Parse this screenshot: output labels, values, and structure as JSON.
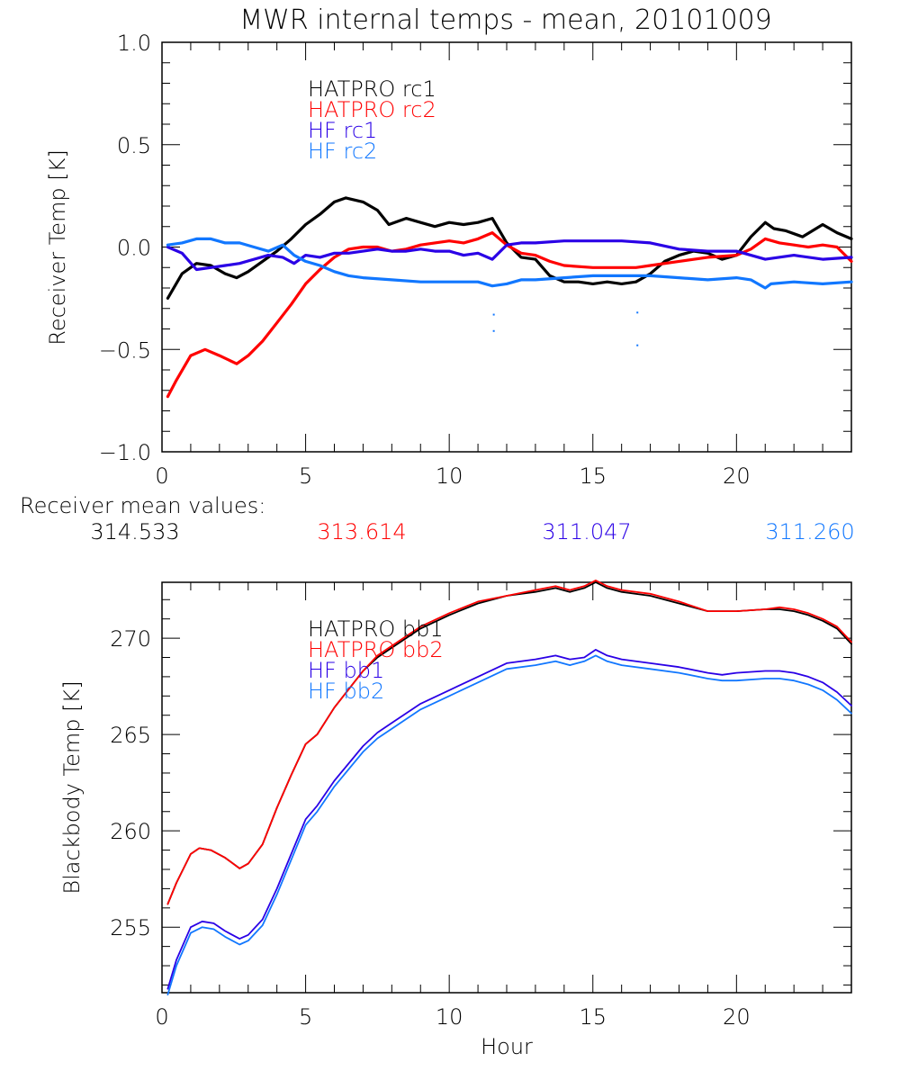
{
  "chart_data": [
    {
      "type": "line",
      "title": "MWR internal temps - mean, 20101009",
      "xlabel": "",
      "ylabel": "Receiver Temp [K]",
      "xlim": [
        0,
        24
      ],
      "ylim": [
        -1.0,
        1.0
      ],
      "xticks": [
        "0",
        "5",
        "10",
        "15",
        "20"
      ],
      "xtick_values": [
        0,
        5,
        10,
        15,
        20
      ],
      "yticks": [
        "-1.0",
        "-0.5",
        "0.0",
        "0.5",
        "1.0"
      ],
      "ytick_values": [
        -1.0,
        -0.5,
        0.0,
        0.5,
        1.0
      ],
      "x_minor_step": 1,
      "y_minor_step": 0.1,
      "grid": false,
      "legend_position": "top-left",
      "series": [
        {
          "name": "HATPRO rc1",
          "color": "#000000",
          "x": [
            0.2,
            0.7,
            1.2,
            1.7,
            2.2,
            2.6,
            3.0,
            3.5,
            4.0,
            4.5,
            5.0,
            5.5,
            6.0,
            6.4,
            7.0,
            7.5,
            7.9,
            8.5,
            9.0,
            9.5,
            10.0,
            10.5,
            11.0,
            11.5,
            12.0,
            12.5,
            13.0,
            13.5,
            14.0,
            14.5,
            15.0,
            15.5,
            16.0,
            16.5,
            17.0,
            17.5,
            18.0,
            18.5,
            19.0,
            19.5,
            20.0,
            20.5,
            21.0,
            21.3,
            21.7,
            22.3,
            23.0,
            23.5,
            24.0
          ],
          "y": [
            -0.25,
            -0.13,
            -0.08,
            -0.09,
            -0.13,
            -0.15,
            -0.12,
            -0.07,
            -0.02,
            0.04,
            0.11,
            0.16,
            0.22,
            0.24,
            0.22,
            0.18,
            0.11,
            0.14,
            0.12,
            0.1,
            0.12,
            0.11,
            0.12,
            0.14,
            0.02,
            -0.05,
            -0.06,
            -0.14,
            -0.17,
            -0.17,
            -0.18,
            -0.17,
            -0.18,
            -0.17,
            -0.13,
            -0.07,
            -0.04,
            -0.02,
            -0.03,
            -0.06,
            -0.04,
            0.05,
            0.12,
            0.09,
            0.08,
            0.05,
            0.11,
            0.07,
            0.04
          ]
        },
        {
          "name": "HATPRO rc2",
          "color": "#ff0000",
          "x": [
            0.2,
            0.5,
            1.0,
            1.5,
            2.0,
            2.6,
            3.0,
            3.5,
            4.0,
            4.5,
            5.0,
            5.5,
            6.0,
            6.5,
            7.0,
            7.5,
            8.0,
            8.5,
            9.0,
            9.5,
            10.0,
            10.5,
            11.0,
            11.5,
            12.0,
            12.5,
            13.0,
            13.5,
            14.0,
            15.0,
            16.0,
            16.5,
            17.0,
            18.0,
            19.0,
            20.0,
            20.5,
            21.0,
            21.5,
            22.0,
            22.5,
            23.0,
            23.5,
            24.0
          ],
          "y": [
            -0.73,
            -0.65,
            -0.53,
            -0.5,
            -0.53,
            -0.57,
            -0.53,
            -0.46,
            -0.37,
            -0.28,
            -0.18,
            -0.11,
            -0.05,
            -0.01,
            0.0,
            0.0,
            -0.02,
            -0.01,
            0.01,
            0.02,
            0.03,
            0.02,
            0.04,
            0.07,
            0.01,
            -0.03,
            -0.04,
            -0.07,
            -0.09,
            -0.1,
            -0.1,
            -0.1,
            -0.09,
            -0.07,
            -0.05,
            -0.04,
            -0.01,
            0.04,
            0.02,
            0.01,
            0.0,
            0.01,
            0.0,
            -0.07
          ]
        },
        {
          "name": "HF rc1",
          "color": "#2a00e6",
          "x": [
            0.2,
            0.7,
            1.2,
            1.7,
            2.2,
            2.7,
            3.2,
            3.7,
            4.2,
            4.6,
            5.0,
            5.5,
            6.0,
            6.5,
            7.0,
            7.5,
            8.0,
            8.5,
            9.0,
            9.5,
            10.0,
            10.5,
            11.0,
            11.5,
            12.0,
            12.5,
            13.0,
            14.0,
            15.0,
            16.0,
            17.0,
            18.0,
            19.0,
            20.0,
            21.0,
            22.0,
            23.0,
            24.0
          ],
          "y": [
            0.0,
            -0.03,
            -0.11,
            -0.1,
            -0.09,
            -0.08,
            -0.06,
            -0.04,
            -0.05,
            -0.08,
            -0.04,
            -0.05,
            -0.03,
            -0.03,
            -0.02,
            -0.01,
            -0.02,
            -0.02,
            -0.01,
            -0.02,
            -0.02,
            -0.04,
            -0.03,
            -0.06,
            0.01,
            0.02,
            0.02,
            0.03,
            0.03,
            0.03,
            0.02,
            -0.01,
            -0.02,
            -0.02,
            -0.06,
            -0.04,
            -0.06,
            -0.05
          ]
        },
        {
          "name": "HF rc2",
          "color": "#1177ff",
          "x": [
            0.2,
            0.7,
            1.2,
            1.7,
            2.2,
            2.7,
            3.2,
            3.7,
            4.2,
            4.6,
            5.0,
            5.5,
            6.0,
            6.5,
            7.0,
            8.0,
            9.0,
            10.0,
            11.0,
            11.5,
            12.0,
            12.5,
            13.0,
            14.0,
            15.0,
            16.0,
            17.0,
            18.0,
            19.0,
            20.0,
            20.5,
            21.0,
            21.2,
            22.0,
            23.0,
            24.0
          ],
          "y": [
            0.01,
            0.02,
            0.04,
            0.04,
            0.02,
            0.02,
            0.0,
            -0.02,
            0.01,
            -0.04,
            -0.07,
            -0.09,
            -0.12,
            -0.14,
            -0.15,
            -0.16,
            -0.17,
            -0.17,
            -0.17,
            -0.19,
            -0.18,
            -0.16,
            -0.16,
            -0.15,
            -0.14,
            -0.14,
            -0.14,
            -0.15,
            -0.16,
            -0.15,
            -0.16,
            -0.2,
            -0.18,
            -0.17,
            -0.18,
            -0.17
          ]
        }
      ],
      "outliers": [
        {
          "series": "HF rc2",
          "x": 11.55,
          "y": -0.33
        },
        {
          "series": "HF rc2",
          "x": 11.55,
          "y": -0.41
        },
        {
          "series": "HF rc2",
          "x": 16.55,
          "y": -0.32
        },
        {
          "series": "HF rc2",
          "x": 16.55,
          "y": -0.48
        }
      ]
    },
    {
      "type": "line",
      "title": "",
      "xlabel": "Hour",
      "ylabel": "Blackbody Temp [K]",
      "xlim": [
        0,
        24
      ],
      "ylim": [
        251.6,
        272.9
      ],
      "xticks": [
        "0",
        "5",
        "10",
        "15",
        "20"
      ],
      "xtick_values": [
        0,
        5,
        10,
        15,
        20
      ],
      "yticks": [
        "255",
        "260",
        "265",
        "270"
      ],
      "ytick_values": [
        255,
        260,
        265,
        270
      ],
      "x_minor_step": 1,
      "y_minor_step": 1,
      "grid": false,
      "legend_position": "top-left",
      "series": [
        {
          "name": "HATPRO bb1",
          "color": "#000000",
          "x": [
            0.2,
            0.5,
            1.0,
            1.3,
            1.7,
            2.2,
            2.7,
            3.0,
            3.5,
            4.0,
            4.5,
            5.0,
            5.4,
            6.0,
            7.0,
            7.5,
            8.0,
            9.0,
            10.0,
            11.0,
            12.0,
            13.0,
            13.7,
            14.2,
            14.7,
            15.1,
            15.5,
            16.0,
            17.0,
            18.0,
            19.0,
            19.5,
            20.0,
            21.0,
            21.5,
            22.0,
            22.5,
            23.0,
            23.5,
            24.0
          ],
          "y": [
            256.2,
            257.3,
            258.8,
            259.1,
            259.0,
            258.6,
            258.05,
            258.3,
            259.3,
            261.2,
            262.9,
            264.5,
            265.0,
            266.4,
            268.3,
            269.0,
            269.5,
            270.5,
            271.2,
            271.8,
            272.2,
            272.4,
            272.6,
            272.4,
            272.6,
            272.9,
            272.6,
            272.4,
            272.2,
            271.8,
            271.4,
            271.4,
            271.4,
            271.5,
            271.5,
            271.4,
            271.2,
            270.9,
            270.5,
            269.7
          ]
        },
        {
          "name": "HATPRO bb2",
          "color": "#ff0000",
          "x": [
            0.2,
            0.5,
            1.0,
            1.3,
            1.7,
            2.2,
            2.7,
            3.0,
            3.5,
            4.0,
            4.5,
            5.0,
            5.4,
            6.0,
            7.0,
            7.5,
            8.0,
            9.0,
            10.0,
            11.0,
            12.0,
            13.0,
            13.7,
            14.2,
            14.7,
            15.1,
            15.5,
            16.0,
            17.0,
            18.0,
            19.0,
            19.5,
            20.0,
            21.0,
            21.5,
            22.0,
            22.5,
            23.0,
            23.5,
            24.0
          ],
          "y": [
            256.2,
            257.3,
            258.8,
            259.1,
            259.0,
            258.6,
            258.05,
            258.3,
            259.3,
            261.2,
            262.9,
            264.5,
            265.0,
            266.4,
            268.3,
            269.1,
            269.6,
            270.6,
            271.3,
            271.9,
            272.2,
            272.5,
            272.7,
            272.5,
            272.7,
            273.0,
            272.7,
            272.5,
            272.3,
            271.9,
            271.4,
            271.4,
            271.4,
            271.5,
            271.6,
            271.5,
            271.3,
            271.0,
            270.6,
            269.8
          ]
        },
        {
          "name": "HF bb1",
          "color": "#2a00e6",
          "x": [
            0.2,
            0.5,
            1.0,
            1.4,
            1.8,
            2.2,
            2.7,
            3.0,
            3.5,
            4.0,
            4.5,
            5.0,
            5.4,
            6.0,
            7.0,
            7.5,
            8.0,
            9.0,
            10.0,
            11.0,
            12.0,
            13.0,
            13.7,
            14.2,
            14.7,
            15.1,
            15.5,
            16.0,
            17.0,
            18.0,
            19.0,
            19.5,
            20.0,
            21.0,
            21.5,
            22.0,
            22.5,
            23.0,
            23.5,
            24.0
          ],
          "y": [
            251.8,
            253.3,
            255.0,
            255.3,
            255.2,
            254.8,
            254.4,
            254.6,
            255.4,
            257.0,
            258.8,
            260.6,
            261.3,
            262.6,
            264.4,
            265.1,
            265.6,
            266.6,
            267.3,
            268.0,
            268.7,
            268.9,
            269.1,
            268.9,
            269.0,
            269.4,
            269.1,
            268.9,
            268.7,
            268.5,
            268.2,
            268.1,
            268.2,
            268.3,
            268.3,
            268.2,
            268.0,
            267.7,
            267.2,
            266.5
          ]
        },
        {
          "name": "HF bb2",
          "color": "#1177ff",
          "x": [
            0.2,
            0.5,
            1.0,
            1.4,
            1.8,
            2.2,
            2.7,
            3.0,
            3.5,
            4.0,
            4.5,
            5.0,
            5.4,
            6.0,
            7.0,
            7.5,
            8.0,
            9.0,
            10.0,
            11.0,
            12.0,
            13.0,
            13.7,
            14.2,
            14.7,
            15.1,
            15.5,
            16.0,
            17.0,
            18.0,
            19.0,
            19.5,
            20.0,
            21.0,
            21.5,
            22.0,
            22.5,
            23.0,
            23.5,
            24.0
          ],
          "y": [
            251.5,
            253.0,
            254.7,
            255.0,
            254.9,
            254.5,
            254.1,
            254.3,
            255.1,
            256.7,
            258.5,
            260.3,
            261.0,
            262.3,
            264.1,
            264.8,
            265.3,
            266.3,
            267.0,
            267.7,
            268.4,
            268.6,
            268.8,
            268.6,
            268.8,
            269.1,
            268.8,
            268.6,
            268.4,
            268.2,
            267.9,
            267.8,
            267.8,
            267.9,
            267.9,
            267.8,
            267.6,
            267.3,
            266.8,
            266.1
          ]
        }
      ]
    }
  ],
  "receiver_means": {
    "label": "Receiver mean values:",
    "values": [
      {
        "series": "HATPRO rc1",
        "text": "314.533",
        "color": "#000000"
      },
      {
        "series": "HATPRO rc2",
        "text": "313.614",
        "color": "#ff0000"
      },
      {
        "series": "HF rc1",
        "text": "311.047",
        "color": "#2a00e6"
      },
      {
        "series": "HF rc2",
        "text": "311.260",
        "color": "#1177ff"
      }
    ]
  }
}
